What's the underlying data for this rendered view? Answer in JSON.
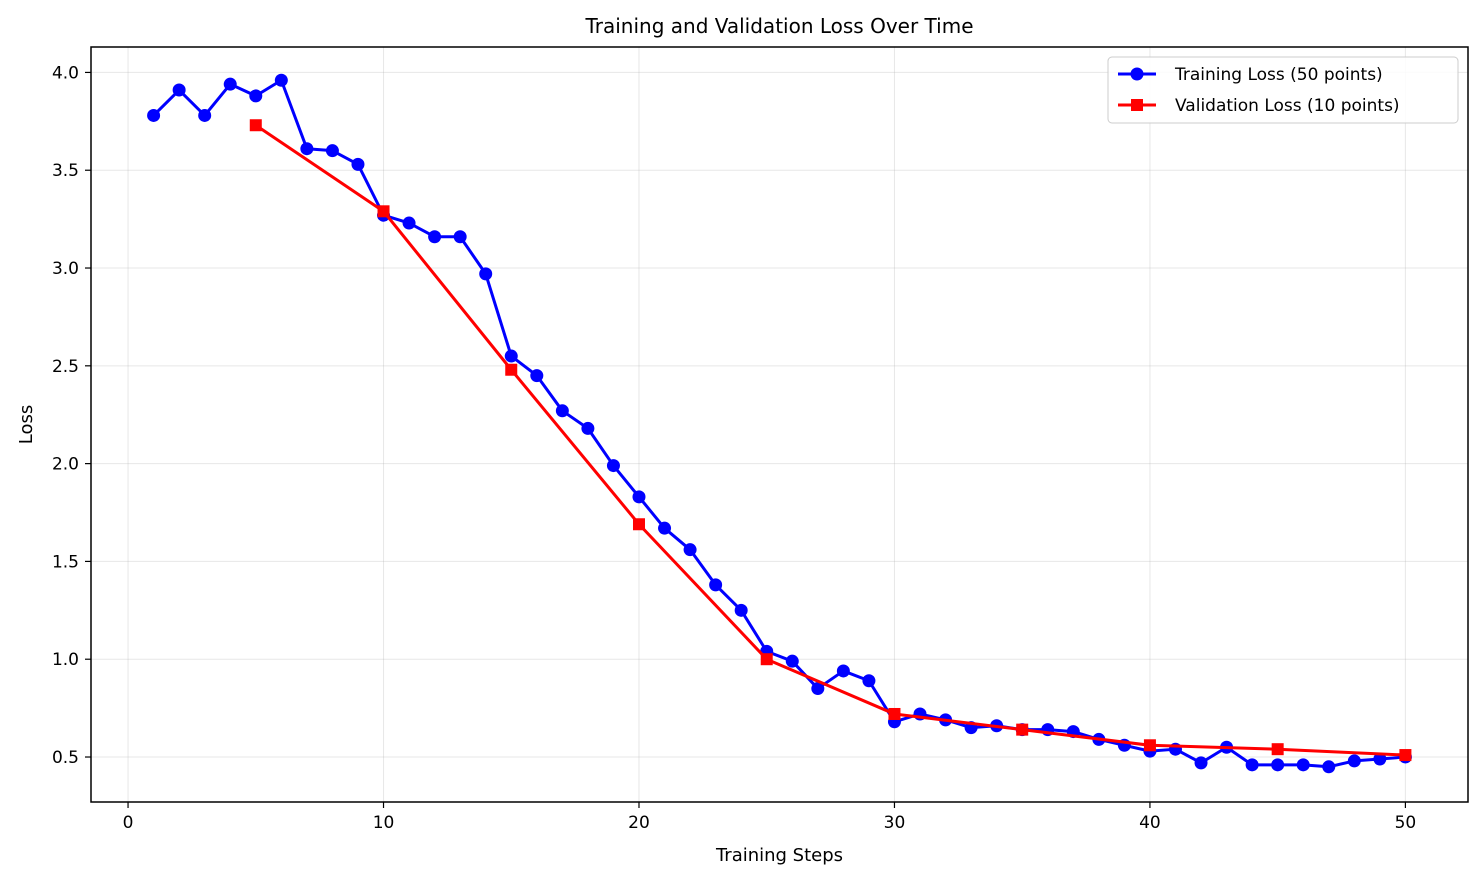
{
  "chart_data": {
    "type": "line",
    "title": "Training and Validation Loss Over Time",
    "xlabel": "Training Steps",
    "ylabel": "Loss",
    "xlim": [
      -1.45,
      52.45
    ],
    "ylim": [
      0.27,
      4.13
    ],
    "xticks": [
      0,
      10,
      20,
      30,
      40,
      50
    ],
    "xtick_labels": [
      "0",
      "10",
      "20",
      "30",
      "40",
      "50"
    ],
    "yticks": [
      0.5,
      1.0,
      1.5,
      2.0,
      2.5,
      3.0,
      3.5,
      4.0
    ],
    "ytick_labels": [
      "0.5",
      "1.0",
      "1.5",
      "2.0",
      "2.5",
      "3.0",
      "3.5",
      "4.0"
    ],
    "grid": true,
    "legend_position": "top-right",
    "series": [
      {
        "name": "Training Loss (50 points)",
        "color": "#0000ff",
        "marker": "circle",
        "x": [
          1,
          2,
          3,
          4,
          5,
          6,
          7,
          8,
          9,
          10,
          11,
          12,
          13,
          14,
          15,
          16,
          17,
          18,
          19,
          20,
          21,
          22,
          23,
          24,
          25,
          26,
          27,
          28,
          29,
          30,
          31,
          32,
          33,
          34,
          35,
          36,
          37,
          38,
          39,
          40,
          41,
          42,
          43,
          44,
          45,
          46,
          47,
          48,
          49,
          50
        ],
        "y": [
          3.78,
          3.91,
          3.78,
          3.94,
          3.88,
          3.96,
          3.61,
          3.6,
          3.53,
          3.27,
          3.23,
          3.16,
          3.16,
          2.97,
          2.55,
          2.45,
          2.27,
          2.18,
          1.99,
          1.83,
          1.67,
          1.56,
          1.38,
          1.25,
          1.04,
          0.99,
          0.85,
          0.94,
          0.89,
          0.68,
          0.72,
          0.69,
          0.65,
          0.66,
          0.64,
          0.64,
          0.63,
          0.59,
          0.56,
          0.53,
          0.54,
          0.47,
          0.55,
          0.46,
          0.46,
          0.46,
          0.45,
          0.48,
          0.49,
          0.5
        ]
      },
      {
        "name": "Validation Loss (10 points)",
        "color": "#ff0000",
        "marker": "square",
        "x": [
          5,
          10,
          15,
          20,
          25,
          30,
          35,
          40,
          45,
          50
        ],
        "y": [
          3.73,
          3.29,
          2.48,
          1.69,
          1.0,
          0.72,
          0.64,
          0.56,
          0.54,
          0.51
        ]
      }
    ]
  }
}
